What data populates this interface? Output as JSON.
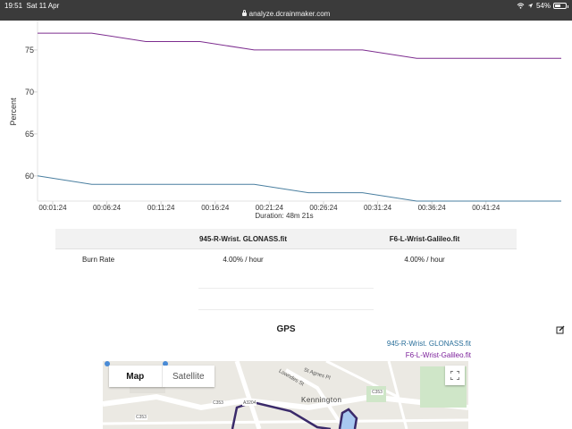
{
  "status_bar": {
    "time": "19:51",
    "date": "Sat 11 Apr",
    "url": "analyze.dcrainmaker.com",
    "battery": "54%",
    "battery_level": 0.54
  },
  "colors": {
    "series_a": "#4a7fa0",
    "series_b": "#7d2d8f"
  },
  "chart_data": {
    "type": "line",
    "ylabel": "Percent",
    "xlabel": "Duration: 48m 21s",
    "y_ticks": [
      "75",
      "70",
      "65",
      "60"
    ],
    "x_ticks": [
      "00:01:24",
      "00:06:24",
      "00:11:24",
      "00:16:24",
      "00:21:24",
      "00:26:24",
      "00:31:24",
      "00:36:24",
      "00:41:24"
    ],
    "ylim": [
      57,
      78.5
    ],
    "xlim_minutes": [
      0,
      48.35
    ],
    "series": [
      {
        "name": "945-R-Wrist. GLONASS.fit",
        "points": [
          [
            0,
            60
          ],
          [
            5,
            59
          ],
          [
            20,
            59
          ],
          [
            25,
            58
          ],
          [
            30,
            58
          ],
          [
            35,
            57
          ],
          [
            48.35,
            57
          ]
        ]
      },
      {
        "name": "F6-L-Wrist-Galileo.fit",
        "points": [
          [
            0,
            77
          ],
          [
            5,
            77
          ],
          [
            10,
            76
          ],
          [
            15,
            76
          ],
          [
            20,
            75
          ],
          [
            30,
            75
          ],
          [
            35,
            74
          ],
          [
            48.35,
            74
          ]
        ]
      }
    ]
  },
  "table": {
    "headers": [
      "",
      "945-R-Wrist. GLONASS.fit",
      "F6-L-Wrist-Galileo.fit"
    ],
    "rows": [
      [
        "Burn Rate",
        "4.00% / hour",
        "4.00% / hour"
      ]
    ]
  },
  "gps": {
    "title": "GPS",
    "legend": [
      "945-R-Wrist. GLONASS.fit",
      "F6-L-Wrist-Galileo.fit"
    ],
    "map": {
      "tab_map": "Map",
      "tab_satellite": "Satellite",
      "place_label": "Kennington",
      "street_labels": [
        "St Agnes Pl",
        "Lowndes St",
        "A3204",
        "C353",
        "C353",
        "C353"
      ]
    }
  }
}
